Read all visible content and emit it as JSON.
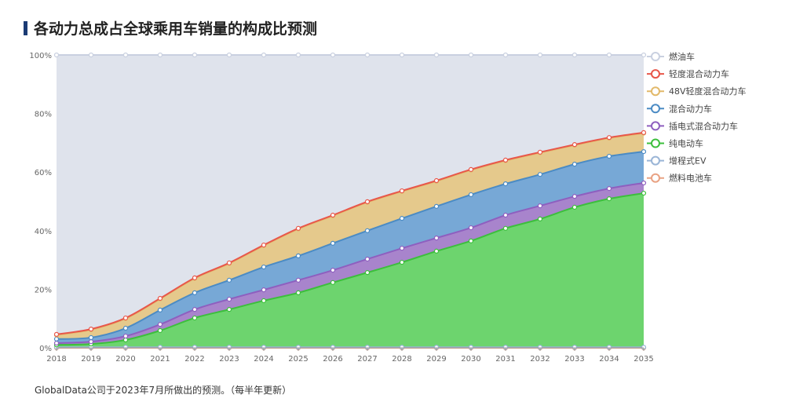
{
  "title": "各动力总成占全球乘用车销量的构成比预测",
  "footnote": "GlobalData公司于2023年7月所做出的预测。（每半年更新）",
  "chart_data": {
    "type": "area",
    "stacked": true,
    "title": "各动力总成占全球乘用车销量的构成比预测",
    "x": [
      "2018",
      "2019",
      "2020",
      "2021",
      "2022",
      "2023",
      "2024",
      "2025",
      "2026",
      "2027",
      "2028",
      "2029",
      "2030",
      "2031",
      "2032",
      "2033",
      "2034",
      "2035"
    ],
    "ylim": [
      0,
      100
    ],
    "yticks": [
      "0%",
      "20%",
      "40%",
      "60%",
      "80%",
      "100%"
    ],
    "grid": false,
    "legend": "right",
    "series": [
      {
        "name": "燃料电池车",
        "color": "#e9a283",
        "fill": "#f0b99e",
        "values": [
          0,
          0,
          0,
          0,
          0,
          0,
          0,
          0,
          0,
          0,
          0,
          0,
          0,
          0,
          0,
          0,
          0,
          0
        ]
      },
      {
        "name": "增程式EV",
        "color": "#9ab5d6",
        "fill": "#b7cbe3",
        "values": [
          0.2,
          0.2,
          0.2,
          0.2,
          0.2,
          0.2,
          0.2,
          0.2,
          0.2,
          0.2,
          0.2,
          0.2,
          0.2,
          0.2,
          0.2,
          0.2,
          0.2,
          0.2
        ]
      },
      {
        "name": "纯电动车",
        "color": "#3cbf3c",
        "fill": "#6dd46e",
        "values": [
          0.8,
          1.1,
          2.5,
          5.7,
          10,
          12.9,
          15.9,
          18.6,
          22.1,
          25.5,
          29,
          32.8,
          36.3,
          40.6,
          43.8,
          47.8,
          50.7,
          52.6
        ]
      },
      {
        "name": "插电式混合动力车",
        "color": "#8e5fbf",
        "fill": "#a884cc",
        "values": [
          0.6,
          0.8,
          1.3,
          2.1,
          2.9,
          3.5,
          3.7,
          4.3,
          4.2,
          4.6,
          4.8,
          4.5,
          4.5,
          4.5,
          4.5,
          3.7,
          3.5,
          3.5
        ]
      },
      {
        "name": "混合动力车",
        "color": "#4b8bc4",
        "fill": "#77a8d6",
        "values": [
          1.4,
          1.4,
          2.7,
          4.9,
          5.7,
          6.5,
          7.8,
          8.3,
          9.2,
          9.7,
          10.2,
          10.8,
          11.3,
          10.7,
          10.7,
          11,
          11,
          10.7
        ]
      },
      {
        "name": "48V轻度混合动力车",
        "color": "#e2b96a",
        "fill": "#e5c98c",
        "values": [
          1.4,
          2.7,
          3.3,
          3.8,
          4.9,
          5.7,
          7.3,
          9.2,
          9.4,
          9.7,
          9.2,
          8.6,
          8.4,
          7.9,
          7.4,
          6.5,
          6.2,
          6.3
        ]
      },
      {
        "name": "轻度混合动力车",
        "color": "#e8574a",
        "fill": "#e8574a",
        "values": [
          0.2,
          0.2,
          0.2,
          0.2,
          0.2,
          0.2,
          0.2,
          0.2,
          0.2,
          0.2,
          0.2,
          0.2,
          0.2,
          0.2,
          0.2,
          0.2,
          0.2,
          0.2
        ]
      },
      {
        "name": "燃油车",
        "color": "#c9d0e0",
        "fill": "#dfe3ec",
        "values": [
          95.4,
          93.6,
          89.8,
          83.1,
          76.1,
          71,
          64.9,
          59.2,
          54.7,
          50.1,
          46.4,
          42.9,
          39.1,
          35.9,
          33.2,
          30.6,
          28.2,
          26.5
        ]
      }
    ],
    "legend_order": [
      "燃油车",
      "轻度混合动力车",
      "48V轻度混合动力车",
      "混合动力车",
      "插电式混合动力车",
      "纯电动车",
      "增程式EV",
      "燃料电池车"
    ]
  }
}
